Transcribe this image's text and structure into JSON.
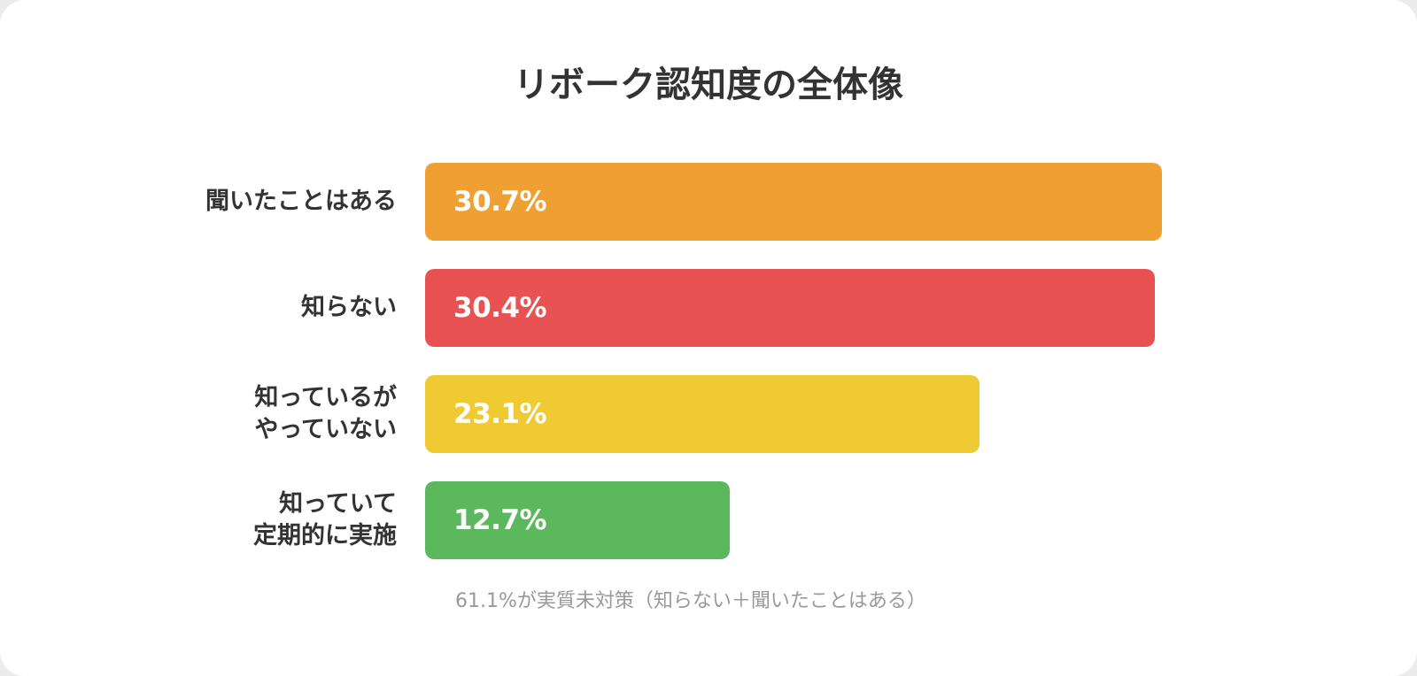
{
  "title": "リボーク認知度の全体像",
  "footnote": "61.1%が実質未対策（知らない＋聞いたことはある）",
  "chart_data": {
    "type": "bar",
    "orientation": "horizontal",
    "title": "リボーク認知度の全体像",
    "categories": [
      [
        "聞いたことはある"
      ],
      [
        "知らない"
      ],
      [
        "知っているが",
        "やっていない"
      ],
      [
        "知っていて",
        "定期的に実施"
      ]
    ],
    "values": [
      30.7,
      30.4,
      23.1,
      12.7
    ],
    "value_labels": [
      "30.7%",
      "30.4%",
      "23.1%",
      "12.7%"
    ],
    "colors": [
      "#F0A032",
      "#E95253",
      "#F0CA32",
      "#5CB85C"
    ],
    "grid": false,
    "legend": "none"
  }
}
